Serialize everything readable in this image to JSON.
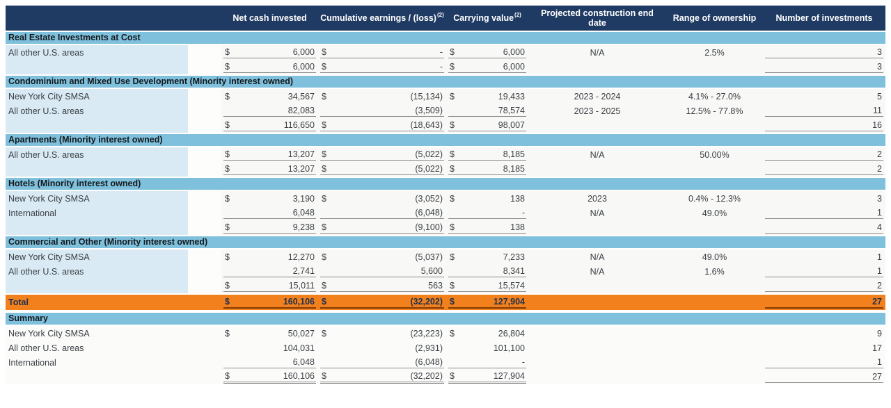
{
  "colors": {
    "header_bg": "#1F3A63",
    "header_text": "#FFFFFF",
    "section_bg": "#7FC0DC",
    "section_text": "#14181C",
    "label_col_bg": "#D9EAF4",
    "gap_col_bg": "#FDFDFC",
    "row_bg": "#F8F8F6",
    "summary_row_bg": "#FBFBFA",
    "total_bg": "#F2811D",
    "total_text": "#1E3050",
    "underline": "#8A8A8A",
    "total_underline": "#833C00",
    "body_text": "#3B4045"
  },
  "table": {
    "columns": [
      {
        "id": "label",
        "label": ""
      },
      {
        "id": "gap",
        "label": ""
      },
      {
        "id": "nci",
        "label": "Net cash invested"
      },
      {
        "id": "ce",
        "label": "Cumulative earnings / (loss)",
        "sup": "(2)"
      },
      {
        "id": "cv",
        "label": "Carrying value",
        "sup": "(2)"
      },
      {
        "id": "date",
        "label": "Projected construction end date"
      },
      {
        "id": "own",
        "label": "Range of ownership"
      },
      {
        "id": "num",
        "label": "Number of investments"
      }
    ],
    "rows": [
      {
        "type": "section",
        "label": "Real Estate Investments at Cost"
      },
      {
        "type": "data",
        "label": "All other U.S. areas",
        "nci": {
          "d": "$",
          "v": "6,000",
          "u": 1
        },
        "ce": {
          "d": "$",
          "v": "-",
          "u": 1
        },
        "cv": {
          "d": "$",
          "v": "6,000",
          "u": 1
        },
        "date": "N/A",
        "own": "2.5%",
        "num": {
          "v": "3",
          "u": 1
        }
      },
      {
        "type": "total",
        "label": "",
        "nci": {
          "d": "$",
          "v": "6,000",
          "u": 1
        },
        "ce": {
          "d": "$",
          "v": "-",
          "u": 1
        },
        "cv": {
          "d": "$",
          "v": "6,000",
          "u": 1
        },
        "date": "",
        "own": "",
        "num": {
          "v": "3",
          "u": 1
        }
      },
      {
        "type": "section",
        "label": "Condominium and Mixed Use Development (Minority interest owned)"
      },
      {
        "type": "data",
        "label": "New York City SMSA",
        "nci": {
          "d": "$",
          "v": "34,567",
          "u": 0
        },
        "ce": {
          "d": "$",
          "v": "(15,134)",
          "u": 0
        },
        "cv": {
          "d": "$",
          "v": "19,433",
          "u": 0
        },
        "date": "2023 - 2024",
        "own": "4.1% - 27.0%",
        "num": {
          "v": "5",
          "u": 0
        }
      },
      {
        "type": "data",
        "label": "All other U.S. areas",
        "nci": {
          "d": "",
          "v": "82,083",
          "u": 1
        },
        "ce": {
          "d": "",
          "v": "(3,509)",
          "u": 1
        },
        "cv": {
          "d": "",
          "v": "78,574",
          "u": 1
        },
        "date": "2023 - 2025",
        "own": "12.5% - 77.8%",
        "num": {
          "v": "11",
          "u": 1
        }
      },
      {
        "type": "total",
        "label": "",
        "nci": {
          "d": "$",
          "v": "116,650",
          "u": 1
        },
        "ce": {
          "d": "$",
          "v": "(18,643)",
          "u": 1
        },
        "cv": {
          "d": "$",
          "v": "98,007",
          "u": 1
        },
        "date": "",
        "own": "",
        "num": {
          "v": "16",
          "u": 1
        }
      },
      {
        "type": "section",
        "label": "Apartments (Minority interest owned)"
      },
      {
        "type": "data",
        "label": "All other U.S. areas",
        "nci": {
          "d": "$",
          "v": "13,207",
          "u": 1
        },
        "ce": {
          "d": "$",
          "v": "(5,022)",
          "u": 1
        },
        "cv": {
          "d": "$",
          "v": "8,185",
          "u": 1
        },
        "date": "N/A",
        "own": "50.00%",
        "num": {
          "v": "2",
          "u": 1
        }
      },
      {
        "type": "total",
        "label": "",
        "nci": {
          "d": "$",
          "v": "13,207",
          "u": 1
        },
        "ce": {
          "d": "$",
          "v": "(5,022)",
          "u": 1
        },
        "cv": {
          "d": "$",
          "v": "8,185",
          "u": 1
        },
        "date": "",
        "own": "",
        "num": {
          "v": "2",
          "u": 1
        }
      },
      {
        "type": "section",
        "label": "Hotels (Minority interest owned)"
      },
      {
        "type": "data",
        "label": "New York City SMSA",
        "nci": {
          "d": "$",
          "v": "3,190",
          "u": 0
        },
        "ce": {
          "d": "$",
          "v": "(3,052)",
          "u": 0
        },
        "cv": {
          "d": "$",
          "v": "138",
          "u": 0
        },
        "date": "2023",
        "own": "0.4% - 12.3%",
        "num": {
          "v": "3",
          "u": 0
        }
      },
      {
        "type": "data",
        "label": "International",
        "nci": {
          "d": "",
          "v": "6,048",
          "u": 1
        },
        "ce": {
          "d": "",
          "v": "(6,048)",
          "u": 1
        },
        "cv": {
          "d": "",
          "v": "-",
          "u": 1
        },
        "date": "N/A",
        "own": "49.0%",
        "num": {
          "v": "1",
          "u": 1
        }
      },
      {
        "type": "total",
        "label": "",
        "nci": {
          "d": "$",
          "v": "9,238",
          "u": 1
        },
        "ce": {
          "d": "$",
          "v": "(9,100)",
          "u": 1
        },
        "cv": {
          "d": "$",
          "v": "138",
          "u": 1
        },
        "date": "",
        "own": "",
        "num": {
          "v": "4",
          "u": 1
        }
      },
      {
        "type": "section",
        "label": "Commercial and Other (Minority interest owned)"
      },
      {
        "type": "data",
        "label": "New York City SMSA",
        "nci": {
          "d": "$",
          "v": "12,270",
          "u": 0
        },
        "ce": {
          "d": "$",
          "v": "(5,037)",
          "u": 0
        },
        "cv": {
          "d": "$",
          "v": "7,233",
          "u": 0
        },
        "date": "N/A",
        "own": "49.0%",
        "num": {
          "v": "1",
          "u": 0
        }
      },
      {
        "type": "data",
        "label": "All other U.S. areas",
        "nci": {
          "d": "",
          "v": "2,741",
          "u": 1
        },
        "ce": {
          "d": "",
          "v": "5,600",
          "u": 1
        },
        "cv": {
          "d": "",
          "v": "8,341",
          "u": 1
        },
        "date": "N/A",
        "own": "1.6%",
        "num": {
          "v": "1",
          "u": 1
        }
      },
      {
        "type": "total",
        "label": "",
        "nci": {
          "d": "$",
          "v": "15,011",
          "u": 1
        },
        "ce": {
          "d": "$",
          "v": "563",
          "u": 1
        },
        "cv": {
          "d": "$",
          "v": "15,574",
          "u": 1
        },
        "date": "",
        "own": "",
        "num": {
          "v": "2",
          "u": 1
        }
      },
      {
        "type": "grand",
        "label": "Total",
        "nci": {
          "d": "$",
          "v": "160,106",
          "u": 1
        },
        "ce": {
          "d": "$",
          "v": "(32,202)",
          "u": 1
        },
        "cv": {
          "d": "$",
          "v": "127,904",
          "u": 1
        },
        "date": "",
        "own": "",
        "num": {
          "v": "27",
          "u": 1
        }
      },
      {
        "type": "section",
        "label": "Summary"
      },
      {
        "type": "sdata",
        "label": "New York City SMSA",
        "nci": {
          "d": "$",
          "v": "50,027",
          "u": 0
        },
        "ce": {
          "d": "$",
          "v": "(23,223)",
          "u": 0
        },
        "cv": {
          "d": "$",
          "v": "26,804",
          "u": 0
        },
        "date": "",
        "own": "",
        "num": {
          "v": "9",
          "u": 0
        }
      },
      {
        "type": "sdata",
        "label": "All other U.S. areas",
        "nci": {
          "d": "",
          "v": "104,031",
          "u": 0
        },
        "ce": {
          "d": "",
          "v": "(2,931)",
          "u": 0
        },
        "cv": {
          "d": "",
          "v": "101,100",
          "u": 0
        },
        "date": "",
        "own": "",
        "num": {
          "v": "17",
          "u": 0
        }
      },
      {
        "type": "sdata",
        "label": "International",
        "nci": {
          "d": "",
          "v": "6,048",
          "u": 1
        },
        "ce": {
          "d": "",
          "v": "(6,048)",
          "u": 1
        },
        "cv": {
          "d": "",
          "v": "-",
          "u": 1
        },
        "date": "",
        "own": "",
        "num": {
          "v": "1",
          "u": 1
        }
      },
      {
        "type": "stotal",
        "label": "",
        "nci": {
          "d": "$",
          "v": "160,106",
          "u": 2
        },
        "ce": {
          "d": "$",
          "v": "(32,202)",
          "u": 2
        },
        "cv": {
          "d": "$",
          "v": "127,904",
          "u": 2
        },
        "date": "",
        "own": "",
        "num": {
          "v": "27",
          "u": 1
        }
      }
    ]
  }
}
